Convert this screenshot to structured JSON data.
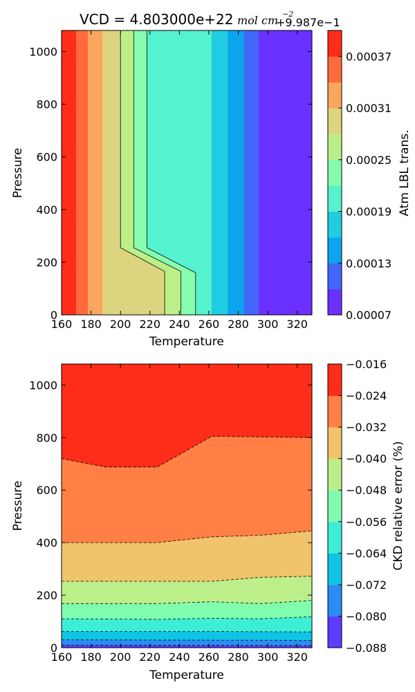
{
  "figure_title": {
    "prefix": "VCD = 4.803000e+22",
    "unit_main": "mol cm",
    "unit_exp": "−2",
    "offset": "+9.987e−1"
  },
  "chart_data": [
    {
      "type": "contourf",
      "x": [
        160,
        170,
        180,
        190,
        200,
        210,
        220,
        230,
        240,
        250,
        260,
        270,
        280,
        290,
        300,
        310,
        320,
        330
      ],
      "xlabel": "Temperature",
      "ylabel": "Pressure",
      "xlim": [
        160,
        330
      ],
      "ylim": [
        0,
        1080
      ],
      "xticks": [
        "160",
        "180",
        "200",
        "220",
        "240",
        "260",
        "280",
        "300",
        "320"
      ],
      "yticks": [
        "0",
        "200",
        "400",
        "600",
        "800",
        "1000"
      ],
      "colorbar": {
        "label": "Atm LBL trans.",
        "offset_label": "+9.987e−1",
        "levels": [
          7e-05,
          0.0001,
          0.00013,
          0.00016,
          0.00019,
          0.00022,
          0.00025,
          0.00028,
          0.00031,
          0.00034,
          0.00037,
          0.0004
        ],
        "tick_labels": [
          "0.00007",
          "0.00013",
          "0.00019",
          "0.00025",
          "0.00031",
          "0.00037"
        ],
        "colors": [
          "#6a30ff",
          "#4366fa",
          "#0da4ee",
          "#20ccdf",
          "#54f2cf",
          "#86fcae",
          "#bbf089",
          "#ddd480",
          "#fba65f",
          "#ff6b3c",
          "#fd2d1a"
        ]
      },
      "contour_lines": [
        {
          "level": 0.00028,
          "points": [
            [
              160,
              0
            ],
            [
              230,
              0
            ],
            [
              230,
              165
            ],
            [
              200,
              255
            ],
            [
              200,
              1080
            ]
          ]
        },
        {
          "level": 0.00025,
          "points": [
            [
              230,
              0
            ],
            [
              241,
              0
            ],
            [
              241,
              165
            ],
            [
              209,
              255
            ],
            [
              209,
              1080
            ]
          ]
        },
        {
          "level": 0.00022,
          "points": [
            [
              241,
              0
            ],
            [
              251,
              0
            ],
            [
              251,
              160
            ],
            [
              218,
              255
            ],
            [
              218,
              1080
            ]
          ]
        }
      ],
      "bands": [
        {
          "level_index": 10,
          "polygon": [
            [
              160,
              0
            ],
            [
              170,
              0
            ],
            [
              170,
              1080
            ],
            [
              160,
              1080
            ]
          ]
        },
        {
          "level_index": 9,
          "polygon": [
            [
              170,
              0
            ],
            [
              178,
              0
            ],
            [
              178,
              1080
            ],
            [
              170,
              1080
            ]
          ]
        },
        {
          "level_index": 8,
          "polygon": [
            [
              178,
              0
            ],
            [
              188,
              0
            ],
            [
              188,
              1080
            ],
            [
              178,
              1080
            ]
          ]
        },
        {
          "level_index": 7,
          "polygon": [
            [
              188,
              0
            ],
            [
              230,
              0
            ],
            [
              230,
              165
            ],
            [
              200,
              255
            ],
            [
              200,
              1080
            ],
            [
              188,
              1080
            ]
          ]
        },
        {
          "level_index": 6,
          "polygon": [
            [
              230,
              0
            ],
            [
              241,
              0
            ],
            [
              241,
              165
            ],
            [
              209,
              255
            ],
            [
              209,
              1080
            ],
            [
              200,
              1080
            ],
            [
              200,
              255
            ],
            [
              230,
              165
            ]
          ]
        },
        {
          "level_index": 5,
          "polygon": [
            [
              241,
              0
            ],
            [
              251,
              0
            ],
            [
              251,
              160
            ],
            [
              218,
              255
            ],
            [
              218,
              1080
            ],
            [
              209,
              1080
            ],
            [
              209,
              255
            ],
            [
              241,
              165
            ]
          ]
        },
        {
          "level_index": 4,
          "polygon": [
            [
              251,
              0
            ],
            [
              262,
              0
            ],
            [
              262,
              1080
            ],
            [
              218,
              1080
            ],
            [
              218,
              255
            ],
            [
              251,
              160
            ]
          ]
        },
        {
          "level_index": 3,
          "polygon": [
            [
              262,
              0
            ],
            [
              273,
              0
            ],
            [
              273,
              1080
            ],
            [
              262,
              1080
            ]
          ]
        },
        {
          "level_index": 2,
          "polygon": [
            [
              273,
              0
            ],
            [
              284,
              0
            ],
            [
              284,
              1080
            ],
            [
              273,
              1080
            ]
          ]
        },
        {
          "level_index": 1,
          "polygon": [
            [
              284,
              0
            ],
            [
              294,
              0
            ],
            [
              294,
              1080
            ],
            [
              284,
              1080
            ]
          ]
        },
        {
          "level_index": 0,
          "polygon": [
            [
              294,
              0
            ],
            [
              330,
              0
            ],
            [
              330,
              1080
            ],
            [
              294,
              1080
            ]
          ]
        }
      ]
    },
    {
      "type": "contourf",
      "xlabel": "Temperature",
      "ylabel": "Pressure",
      "xlim": [
        160,
        330
      ],
      "ylim": [
        0,
        1080
      ],
      "xticks": [
        "160",
        "180",
        "200",
        "220",
        "240",
        "260",
        "280",
        "300",
        "320"
      ],
      "yticks": [
        "0",
        "200",
        "400",
        "600",
        "800",
        "1000"
      ],
      "colorbar": {
        "label": "CKD relative error (%)",
        "levels": [
          -0.088,
          -0.08,
          -0.072,
          -0.064,
          -0.056,
          -0.048,
          -0.04,
          -0.032,
          -0.024,
          -0.016
        ],
        "tick_labels": [
          "−0.016",
          "−0.024",
          "−0.032",
          "−0.040",
          "−0.048",
          "−0.056",
          "−0.064",
          "−0.072",
          "−0.080",
          "−0.088"
        ],
        "colors": [
          "#5e3cff",
          "#2b8cf5",
          "#10c4e5",
          "#3ceed6",
          "#80fcaf",
          "#bcef8a",
          "#f0c36c",
          "#ff7f44",
          "#fd2d1a"
        ]
      },
      "boundaries": [
        {
          "level": -0.024,
          "points": [
            [
              160,
              720
            ],
            [
              190,
              688
            ],
            [
              225,
              688
            ],
            [
              262,
              805
            ],
            [
              330,
              800
            ],
            [
              330,
              862
            ]
          ]
        },
        {
          "level": -0.032,
          "points": [
            [
              160,
              400
            ],
            [
              225,
              400
            ],
            [
              262,
              422
            ],
            [
              295,
              428
            ],
            [
              330,
              445
            ]
          ]
        },
        {
          "level": -0.04,
          "points": [
            [
              160,
              253
            ],
            [
              262,
              253
            ],
            [
              295,
              268
            ],
            [
              330,
              272
            ]
          ]
        },
        {
          "level": -0.048,
          "points": [
            [
              160,
              168
            ],
            [
              225,
              168
            ],
            [
              262,
              175
            ],
            [
              295,
              168
            ],
            [
              330,
              180
            ]
          ]
        },
        {
          "level": -0.056,
          "points": [
            [
              160,
              110
            ],
            [
              225,
              108
            ],
            [
              262,
              112
            ],
            [
              295,
              110
            ],
            [
              330,
              118
            ]
          ]
        },
        {
          "level": -0.064,
          "points": [
            [
              160,
              62
            ],
            [
              262,
              62
            ],
            [
              330,
              60
            ]
          ]
        },
        {
          "level": -0.072,
          "points": [
            [
              160,
              30
            ],
            [
              330,
              28
            ]
          ]
        },
        {
          "level": -0.08,
          "points": [
            [
              160,
              10
            ],
            [
              330,
              8
            ]
          ]
        }
      ]
    }
  ]
}
